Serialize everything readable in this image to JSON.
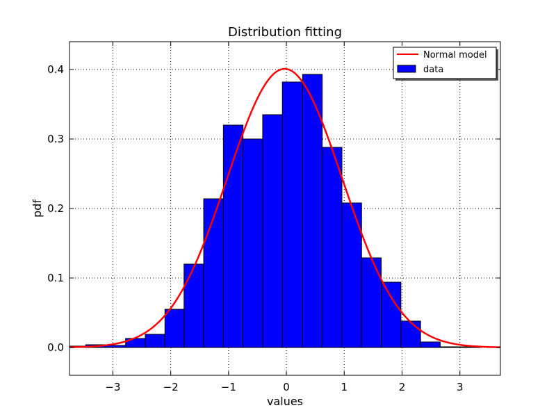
{
  "chart_data": {
    "type": "bar",
    "title": "Distribution fitting",
    "xlabel": "values",
    "ylabel": "pdf",
    "xlim": [
      -3.75,
      3.7
    ],
    "ylim": [
      -0.04,
      0.44
    ],
    "xticks": [
      -3,
      -2,
      -1,
      0,
      1,
      2,
      3
    ],
    "xtick_labels": [
      "−3",
      "−2",
      "−1",
      "0",
      "1",
      "2",
      "3"
    ],
    "yticks": [
      0.0,
      0.1,
      0.2,
      0.3,
      0.4
    ],
    "ytick_labels": [
      "0.0",
      "0.1",
      "0.2",
      "0.3",
      "0.4"
    ],
    "grid": true,
    "legend_position": "top-right",
    "colors": {
      "bars": "#0000ff",
      "curve": "#ff0000"
    },
    "series": [
      {
        "name": "data",
        "type": "bar",
        "bins": [
          [
            -3.75,
            -3.47,
            0.002
          ],
          [
            -3.47,
            -3.13,
            0.004
          ],
          [
            -3.13,
            -2.78,
            0.003
          ],
          [
            -2.78,
            -2.44,
            0.013
          ],
          [
            -2.44,
            -2.1,
            0.019
          ],
          [
            -2.1,
            -1.77,
            0.055
          ],
          [
            -1.77,
            -1.43,
            0.12
          ],
          [
            -1.43,
            -1.09,
            0.214
          ],
          [
            -1.09,
            -0.75,
            0.32
          ],
          [
            -0.75,
            -0.41,
            0.3
          ],
          [
            -0.41,
            -0.07,
            0.335
          ],
          [
            -0.07,
            0.28,
            0.382
          ],
          [
            0.28,
            0.62,
            0.393
          ],
          [
            0.62,
            0.96,
            0.288
          ],
          [
            0.96,
            1.3,
            0.208
          ],
          [
            1.3,
            1.64,
            0.129
          ],
          [
            1.64,
            1.98,
            0.094
          ],
          [
            1.98,
            2.32,
            0.038
          ],
          [
            2.32,
            2.66,
            0.008
          ],
          [
            2.66,
            3.0,
            0.001
          ],
          [
            3.0,
            3.35,
            0.001
          ]
        ]
      },
      {
        "name": "Normal model",
        "type": "line",
        "mean": -0.03,
        "std": 0.995
      }
    ]
  }
}
